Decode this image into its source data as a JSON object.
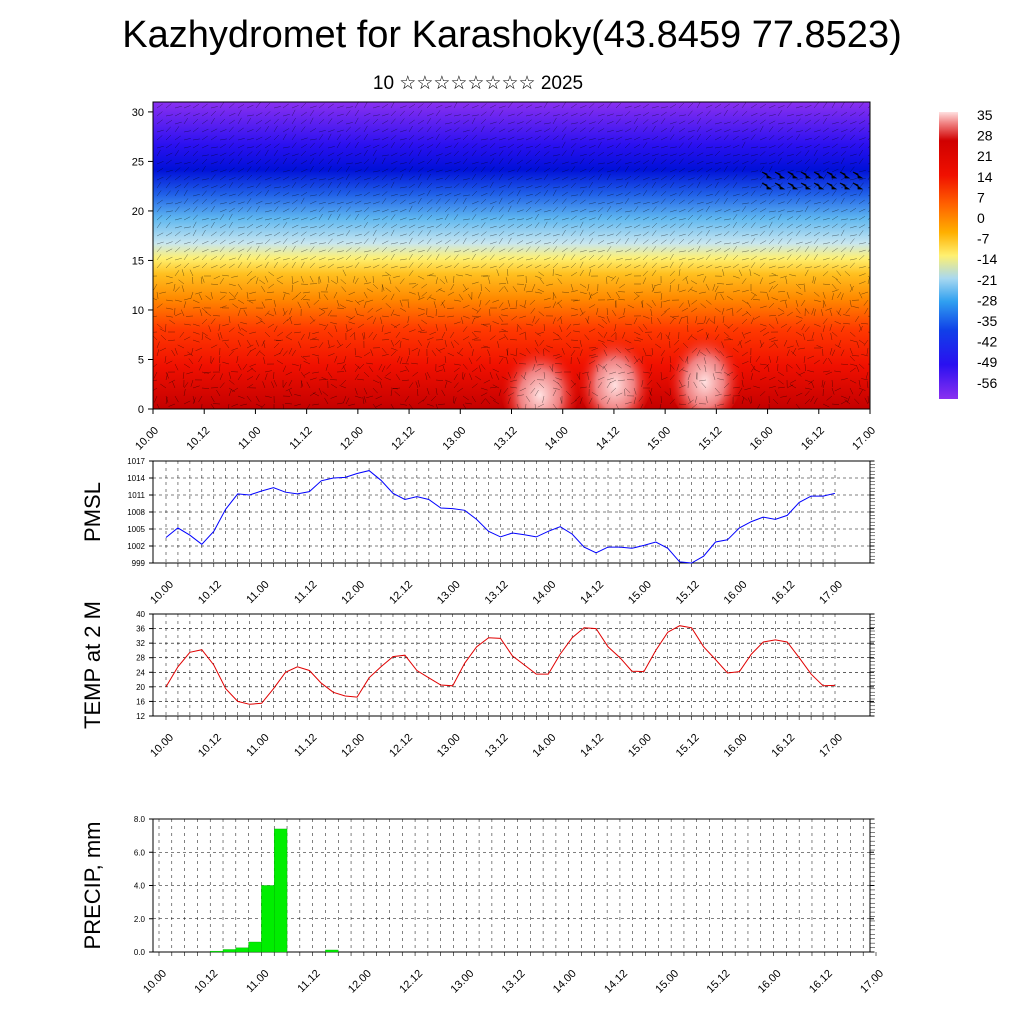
{
  "header": {
    "title": "Kazhydromet for Karashoky(43.8459 77.8523)",
    "subtitle": "10 ☆☆☆☆☆☆☆☆ 2025"
  },
  "colors": {
    "pmsl_line": "#0000ff",
    "temp_line": "#e00000",
    "precip_bar": "#00ee00",
    "vector_arrows": "#000000"
  },
  "time_axis_labels": [
    "10.00",
    "10.12",
    "11.00",
    "11.12",
    "12.00",
    "12.12",
    "13.00",
    "13.12",
    "14.00",
    "14.12",
    "15.00",
    "15.12",
    "16.00",
    "16.12",
    "17.00"
  ],
  "chart_data": [
    {
      "type": "heatmap",
      "title": "",
      "xlabel": "",
      "ylabel": "",
      "x_tick_labels": [
        "10.00",
        "10.12",
        "11.00",
        "11.12",
        "12.00",
        "12.12",
        "13.00",
        "13.12",
        "14.00",
        "14.12",
        "15.00",
        "15.12",
        "16.00",
        "16.12",
        "17.00"
      ],
      "y_ticks": [
        0,
        5,
        10,
        15,
        20,
        25,
        30
      ],
      "ylim": [
        0,
        31
      ],
      "colorbar_labels": [
        "35",
        "28",
        "21",
        "14",
        "7",
        "0",
        "-7",
        "-14",
        "-21",
        "-28",
        "-35",
        "-42",
        "-49",
        "-56"
      ],
      "overlay": "wind vectors"
    },
    {
      "type": "line",
      "ylabel": "PMSL",
      "ylim": [
        999,
        1017
      ],
      "y_ticks": [
        999,
        1002,
        1005,
        1008,
        1011,
        1014,
        1017
      ],
      "x_tick_labels": [
        "10.00",
        "10.12",
        "11.00",
        "11.12",
        "12.00",
        "12.12",
        "13.00",
        "13.12",
        "14.00",
        "14.12",
        "15.00",
        "15.12",
        "16.00",
        "16.12",
        "17.00"
      ],
      "x_step_hours": 3,
      "series": [
        {
          "values": [
            1003.5,
            1005.2,
            1003.9,
            1002.3,
            1004.6,
            1008.5,
            1011.2,
            1011.0,
            1011.7,
            1012.3,
            1011.5,
            1011.2,
            1011.6,
            1013.5,
            1014.0,
            1014.1,
            1014.8,
            1015.3,
            1013.6,
            1011.3,
            1010.2,
            1010.7,
            1010.2,
            1008.7,
            1008.6,
            1008.3,
            1006.7,
            1004.6,
            1003.6,
            1004.3,
            1004.0,
            1003.6,
            1004.6,
            1005.4,
            1004.1,
            1001.8,
            1000.8,
            1001.8,
            1001.8,
            1001.6,
            1002.1,
            1002.7,
            1001.6,
            999.2,
            999.0,
            1000.2,
            1002.7,
            1003.1,
            1005.2,
            1006.3,
            1007.1,
            1006.7,
            1007.4,
            1009.7,
            1010.8,
            1010.8,
            1011.3
          ]
        }
      ]
    },
    {
      "type": "line",
      "ylabel": "TEMP at 2 M",
      "ylim": [
        12,
        40
      ],
      "y_ticks": [
        12,
        16,
        20,
        24,
        28,
        32,
        36,
        40
      ],
      "x_tick_labels": [
        "10.00",
        "10.12",
        "11.00",
        "11.12",
        "12.00",
        "12.12",
        "13.00",
        "13.12",
        "14.00",
        "14.12",
        "15.00",
        "15.12",
        "16.00",
        "16.12",
        "17.00"
      ],
      "x_step_hours": 3,
      "series": [
        {
          "values": [
            20.0,
            25.5,
            29.5,
            30.2,
            26.0,
            19.5,
            16.0,
            15.2,
            15.5,
            19.5,
            24.0,
            25.5,
            24.5,
            21.0,
            18.5,
            17.5,
            17.2,
            22.5,
            25.5,
            28.3,
            28.7,
            24.5,
            22.5,
            20.5,
            20.3,
            26.5,
            31.0,
            33.5,
            33.3,
            28.5,
            26.0,
            23.5,
            23.5,
            29.0,
            33.5,
            36.2,
            36.0,
            31.0,
            28.0,
            24.3,
            24.2,
            30.0,
            35.0,
            36.8,
            36.2,
            31.0,
            27.5,
            23.8,
            24.2,
            29.0,
            32.3,
            32.9,
            32.3,
            28.0,
            23.5,
            20.3,
            20.4
          ]
        }
      ]
    },
    {
      "type": "bar",
      "ylabel": "PRECIP, mm",
      "ylim": [
        0,
        8
      ],
      "y_ticks": [
        "0.0",
        "2.0",
        "4.0",
        "6.0",
        "8.0"
      ],
      "x_tick_labels": [
        "10.00",
        "10.12",
        "11.00",
        "11.12",
        "12.00",
        "12.12",
        "13.00",
        "13.12",
        "14.00",
        "14.12",
        "15.00",
        "15.12",
        "16.00",
        "16.12",
        "17.00"
      ],
      "x_step_hours": 3,
      "values": [
        0,
        0,
        0,
        0,
        0.05,
        0.15,
        0.25,
        0.6,
        4.0,
        7.4,
        0,
        0,
        0,
        0.12,
        0,
        0,
        0,
        0,
        0,
        0,
        0,
        0,
        0,
        0,
        0,
        0,
        0,
        0,
        0,
        0,
        0,
        0,
        0,
        0,
        0,
        0,
        0,
        0,
        0,
        0,
        0,
        0,
        0,
        0,
        0,
        0,
        0,
        0,
        0,
        0,
        0,
        0,
        0,
        0,
        0,
        0
      ]
    }
  ]
}
